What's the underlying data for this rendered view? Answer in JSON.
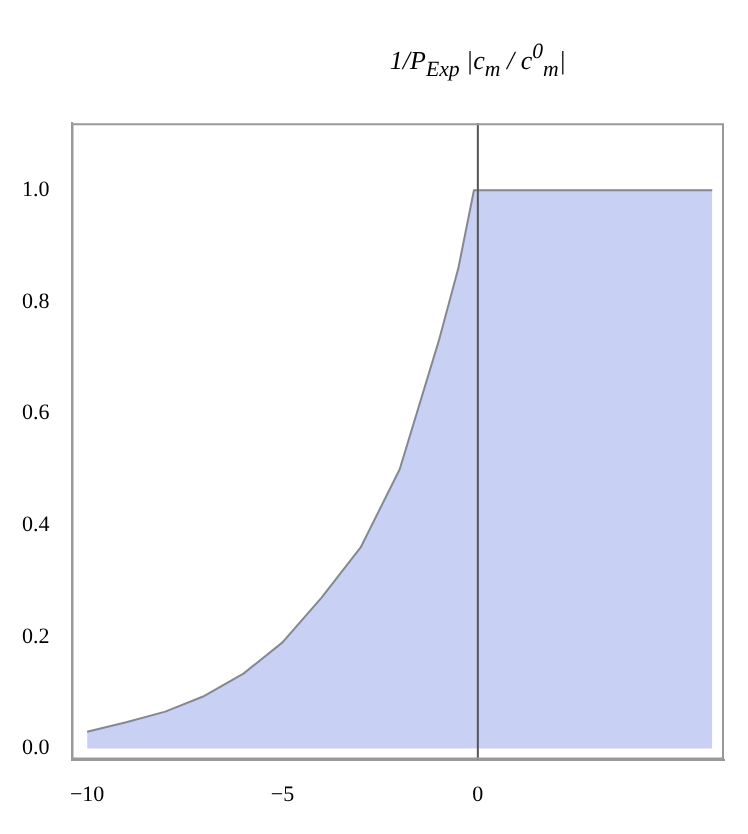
{
  "chart_data": {
    "type": "area",
    "ylabel": "1/P$_{Exp}$ |c$_{m}$ / c$^{0}$$_{m}$|",
    "x": [
      -10,
      -9,
      -8,
      -7,
      -6,
      -5,
      -4,
      -3,
      -2,
      -1,
      -0.5,
      -0.1,
      0,
      6
    ],
    "values": [
      0.03,
      0.047,
      0.066,
      0.094,
      0.134,
      0.19,
      0.27,
      0.36,
      0.5,
      0.73,
      0.86,
      1.0,
      1.0,
      1.0
    ],
    "color": "#c8d0f4",
    "xlim": [
      -10.4,
      6.3
    ],
    "xticks": [
      -10,
      -5,
      0
    ],
    "ylim": [
      -0.02,
      1.12
    ],
    "yticks": [
      {
        "value": 0,
        "label": "0.0"
      },
      {
        "value": 0.2,
        "label": "0.2"
      },
      {
        "value": 0.4,
        "label": "0.4"
      },
      {
        "value": 0.6,
        "label": "0.6"
      },
      {
        "value": 0.8,
        "label": "0.8"
      },
      {
        "value": 1,
        "label": "1.0"
      }
    ],
    "ref_lines": [
      {
        "axis": "x",
        "value": 0,
        "color": "#555555"
      }
    ],
    "grid": false,
    "legend": false
  }
}
